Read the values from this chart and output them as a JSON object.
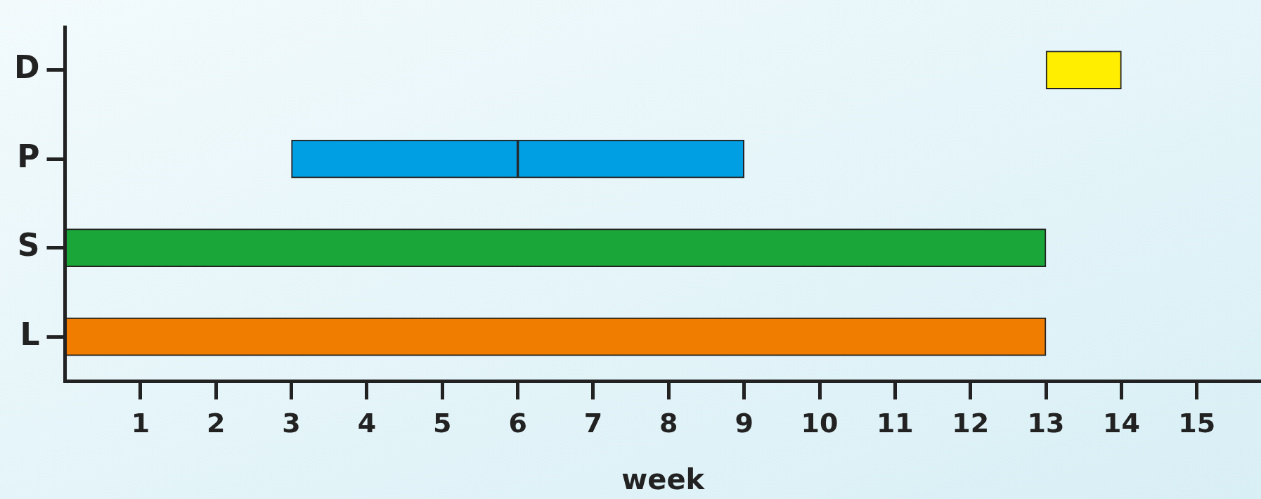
{
  "chart_data": {
    "type": "bar",
    "orientation": "horizontal",
    "xlabel": "week",
    "categories": [
      "D",
      "P",
      "S",
      "L"
    ],
    "series": [
      {
        "colors": [
          "#ffee00",
          "#009fe3",
          "#1ba639",
          "#f07c00"
        ],
        "base": [
          13,
          3,
          0,
          0
        ],
        "values": [
          1,
          3,
          13,
          13
        ]
      },
      {
        "colors": [
          null,
          "#009fe3",
          null,
          null
        ],
        "base": [
          null,
          6,
          null,
          null
        ],
        "values": [
          null,
          3,
          null,
          null
        ]
      }
    ],
    "xlim": [
      0,
      15.85
    ],
    "xticks": [
      1,
      2,
      3,
      4,
      5,
      6,
      7,
      8,
      9,
      10,
      11,
      12,
      13,
      14,
      15
    ],
    "grid": false,
    "legend": false
  }
}
